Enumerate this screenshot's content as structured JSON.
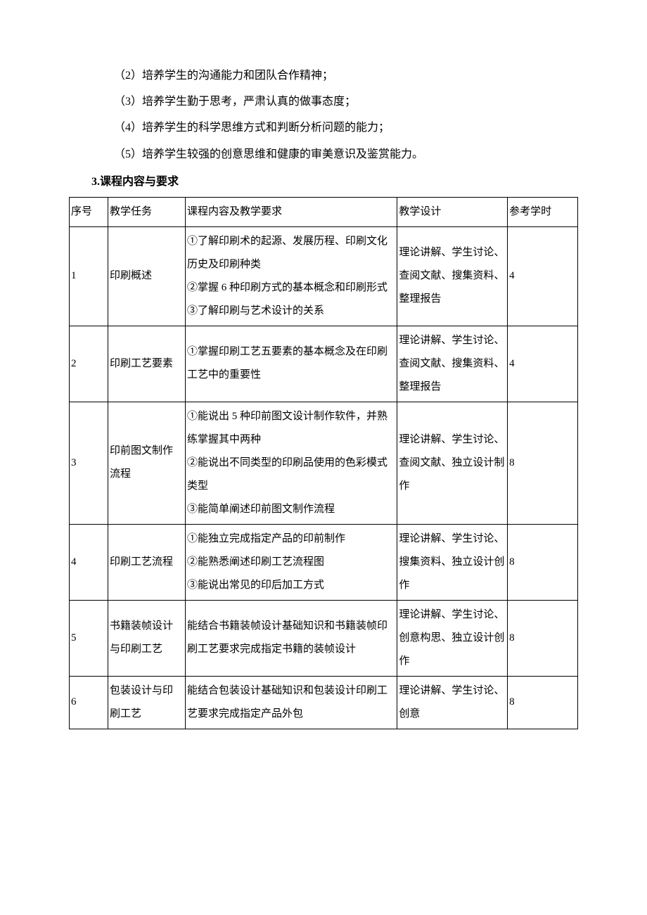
{
  "paragraphs": {
    "p2": "（2）培养学生的沟通能力和团队合作精神；",
    "p3": "（3）培养学生勤于思考，严肃认真的做事态度；",
    "p4": "（4）培养学生的科学思维方式和判断分析问题的能力；",
    "p5": "（5）培养学生较强的创意思维和健康的审美意识及鉴赏能力。"
  },
  "section_heading": "3.课程内容与要求",
  "table": {
    "header": {
      "seq": "序号",
      "task": "教学任务",
      "content": "课程内容及教学要求",
      "design": "教学设计",
      "hours": "参考学时"
    },
    "rows": [
      {
        "seq": "1",
        "task": "印刷概述",
        "content": "①了解印刷术的起源、发展历程、印刷文化历史及印刷种类\n②掌握 6 种印刷方式的基本概念和印刷形式\n③了解印刷与艺术设计的关系",
        "design": "理论讲解、学生讨论、查阅文献、搜集资料、整理报告",
        "hours": "4"
      },
      {
        "seq": "2",
        "task": "印刷工艺要素",
        "content": "①掌握印刷工艺五要素的基本概念及在印刷工艺中的重要性",
        "design": "理论讲解、学生讨论、查阅文献、搜集资料、整理报告",
        "hours": "4"
      },
      {
        "seq": "3",
        "task": "印前图文制作流程",
        "content": "①能说出 5 种印前图文设计制作软件，并熟练掌握其中两种\n②能说出不同类型的印刷品使用的色彩模式类型\n③能简单阐述印前图文制作流程",
        "design": "理论讲解、学生讨论、查阅文献、独立设计制作",
        "hours": "8"
      },
      {
        "seq": "4",
        "task": "印刷工艺流程",
        "content": "①能独立完成指定产品的印前制作\n②能熟悉阐述印刷工艺流程图\n③能说出常见的印后加工方式",
        "design": "理论讲解、学生讨论、搜集资料、独立设计创作",
        "hours": "8"
      },
      {
        "seq": "5",
        "task": "书籍装帧设计与印刷工艺",
        "content": "能结合书籍装帧设计基础知识和书籍装帧印刷工艺要求完成指定书籍的装帧设计",
        "design": "理论讲解、学生讨论、创意构思、独立设计创作",
        "hours": "8"
      },
      {
        "seq": "6",
        "task": "包装设计与印刷工艺",
        "content": "能结合包装设计基础知识和包装设计印刷工艺要求完成指定产品外包",
        "design": "理论讲解、学生讨论、创意",
        "hours": "8"
      }
    ]
  }
}
